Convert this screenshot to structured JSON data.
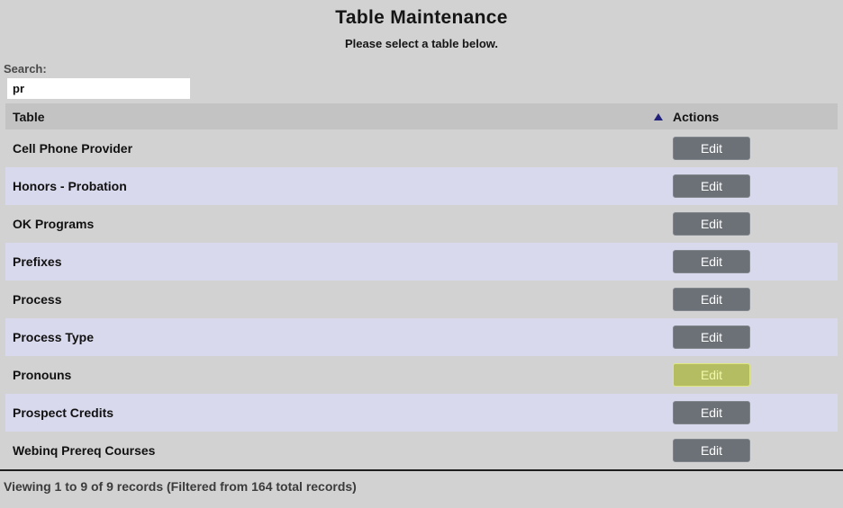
{
  "page": {
    "title": "Table Maintenance",
    "subtitle": "Please select a table below."
  },
  "search": {
    "label": "Search:",
    "value": "pr"
  },
  "table": {
    "columns": {
      "table": "Table",
      "actions": "Actions"
    },
    "sort_icon": "ascending-triangle",
    "sort_direction": "ascending",
    "rows": [
      {
        "name": "Cell Phone Provider",
        "action": "Edit",
        "highlighted": false
      },
      {
        "name": "Honors - Probation",
        "action": "Edit",
        "highlighted": false
      },
      {
        "name": "OK Programs",
        "action": "Edit",
        "highlighted": false
      },
      {
        "name": "Prefixes",
        "action": "Edit",
        "highlighted": false
      },
      {
        "name": "Process",
        "action": "Edit",
        "highlighted": false
      },
      {
        "name": "Process Type",
        "action": "Edit",
        "highlighted": false
      },
      {
        "name": "Pronouns",
        "action": "Edit",
        "highlighted": true
      },
      {
        "name": "Prospect Credits",
        "action": "Edit",
        "highlighted": false
      },
      {
        "name": "Webinq Prereq Courses",
        "action": "Edit",
        "highlighted": false
      }
    ]
  },
  "footer": {
    "status": "Viewing 1 to 9 of 9 records (Filtered from 164 total records)"
  },
  "colors": {
    "page_background": "#d2d2d2",
    "header_row": "#c3c3c3",
    "stripe_row": "#d9d9ee",
    "button": "#6c7177",
    "button_highlight": "#b4bd62",
    "sort_arrow": "#22227c"
  }
}
